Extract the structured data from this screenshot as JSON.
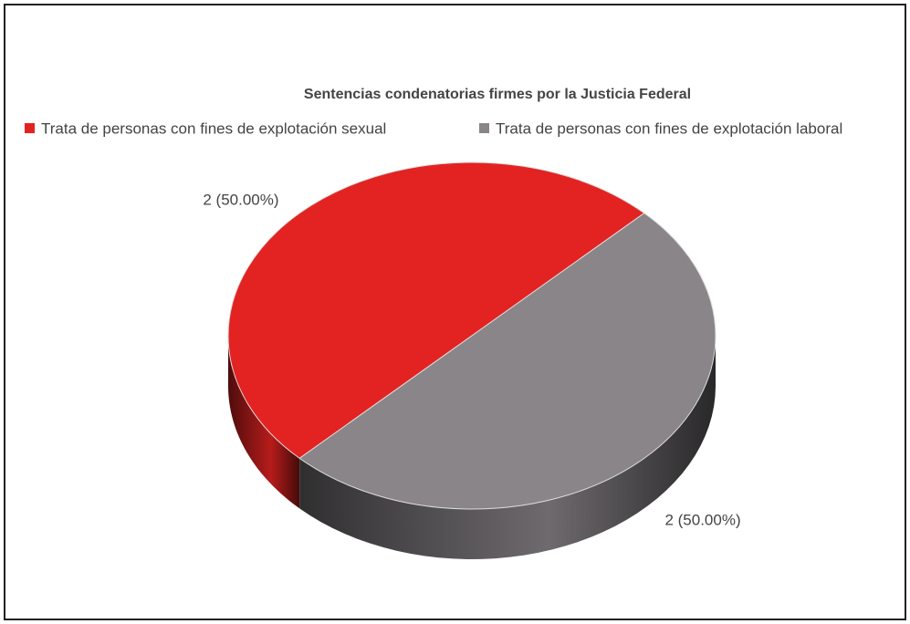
{
  "chart_data": {
    "type": "pie",
    "title": "Sentencias condenatorias firmes por la Justicia Federal",
    "categories": [
      "Trata de personas con fines de explotación sexual",
      "Trata de personas con fines de explotación laboral"
    ],
    "values": [
      2,
      2
    ],
    "value_labels": [
      "2 (50.00%)",
      "2 (50.00%)"
    ],
    "colors": [
      "#e32322",
      "#8a8589"
    ],
    "legend": "top"
  }
}
